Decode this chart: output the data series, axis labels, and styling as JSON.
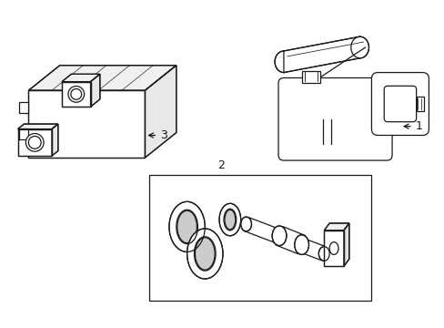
{
  "background_color": "#ffffff",
  "line_color": "#1a1a1a",
  "line_width": 0.9,
  "font_size": 9
}
